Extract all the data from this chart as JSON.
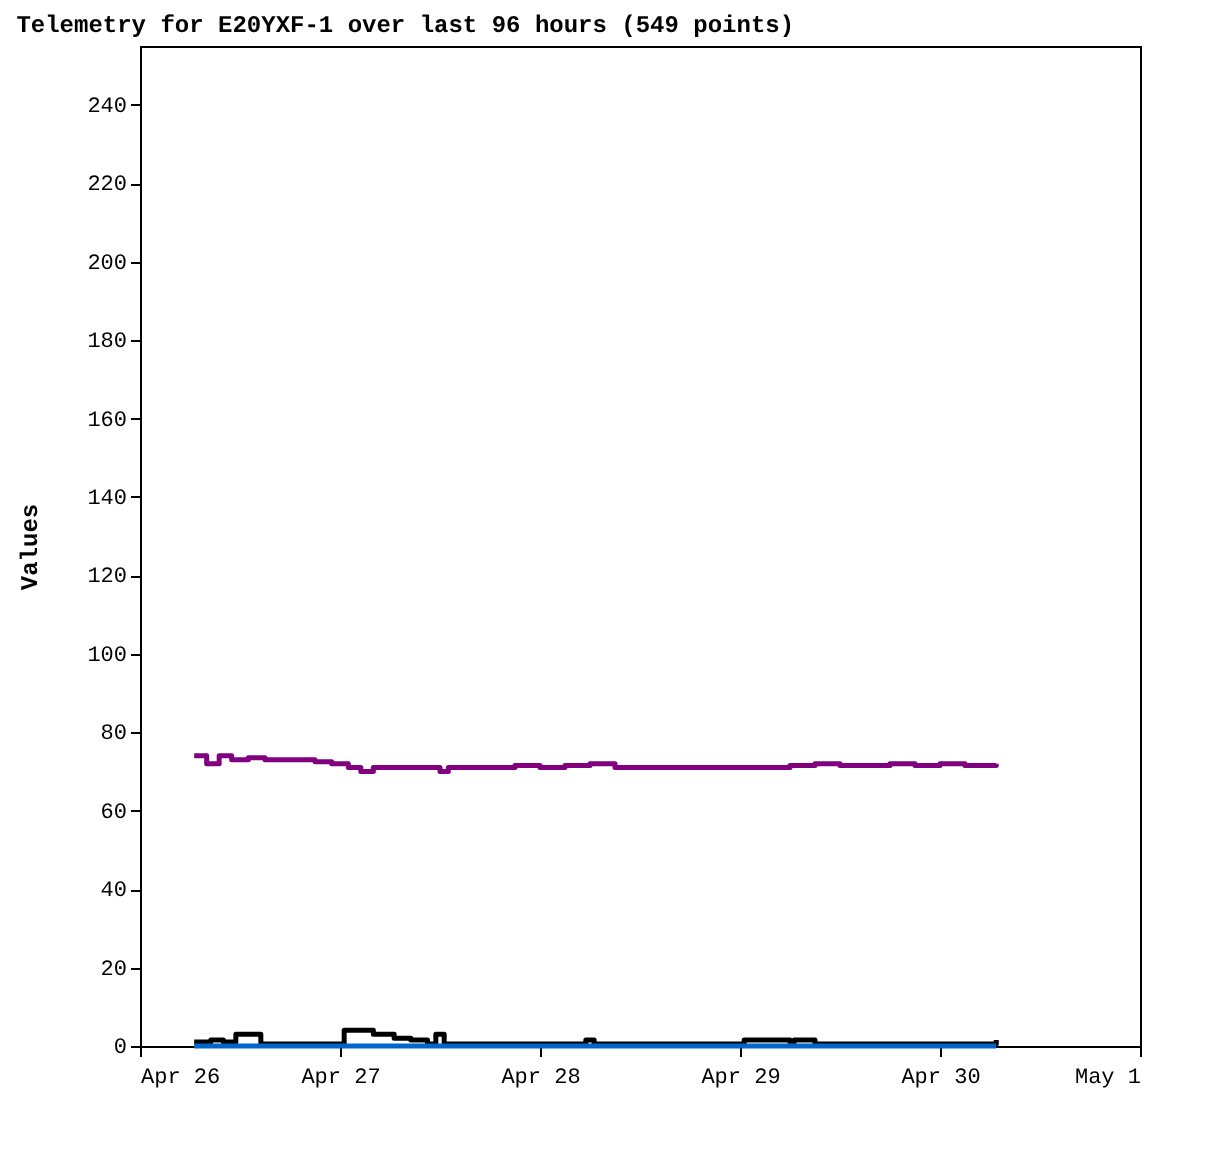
{
  "chart_data": {
    "type": "step",
    "title": "Telemetry for E20YXF-1 over last 96 hours (549 points)",
    "ylabel": "Values",
    "ylim": [
      0,
      255
    ],
    "yticks": [
      0,
      20,
      40,
      60,
      80,
      100,
      120,
      140,
      160,
      180,
      200,
      220,
      240
    ],
    "xlim": [
      "--04-26",
      "--05-01"
    ],
    "xticks": [
      {
        "value": "--04-26",
        "label": "Apr 26"
      },
      {
        "value": "--04-27",
        "label": "Apr 27"
      },
      {
        "value": "--04-28",
        "label": "Apr 28"
      },
      {
        "value": "--04-29",
        "label": "Apr 29"
      },
      {
        "value": "--04-30",
        "label": "Apr 30"
      },
      {
        "value": "--05-01",
        "label": "May 1"
      }
    ],
    "grid": false,
    "series": [
      {
        "color": "#800080",
        "x": [
          "--04-26T06:30",
          "--04-26T08:00",
          "--04-26T09:30",
          "--04-26T11:00",
          "--04-26T13:00",
          "--04-26T15:00",
          "--04-26T17:00",
          "--04-26T19:00",
          "--04-26T21:00",
          "--04-26T23:00",
          "--04-27T01:00",
          "--04-27T02:30",
          "--04-27T04:00",
          "--04-27T06:00",
          "--04-27T08:00",
          "--04-27T10:00",
          "--04-27T12:00",
          "--04-27T13:00",
          "--04-27T15:00",
          "--04-27T18:00",
          "--04-27T21:00",
          "--04-28T00:00",
          "--04-28T03:00",
          "--04-28T06:00",
          "--04-28T09:00",
          "--04-28T12:00",
          "--04-28T15:00",
          "--04-28T18:00",
          "--04-28T21:00",
          "--04-29T00:00",
          "--04-29T03:00",
          "--04-29T06:00",
          "--04-29T09:00",
          "--04-29T12:00",
          "--04-29T15:00",
          "--04-29T18:00",
          "--04-29T21:00",
          "--04-30T00:00",
          "--04-30T03:00",
          "--04-30T06:45"
        ],
        "values": [
          74,
          72,
          74,
          73,
          73.5,
          73,
          73,
          73,
          72.5,
          72,
          71,
          70,
          71,
          71,
          71,
          71,
          70,
          71,
          71,
          71,
          71.5,
          71,
          71.5,
          72,
          71,
          71,
          71,
          71,
          71,
          71,
          71,
          71.5,
          72,
          71.5,
          71.5,
          72,
          71.5,
          72,
          71.5,
          72
        ]
      },
      {
        "color": "#000000",
        "x": [
          "--04-26T06:30",
          "--04-26T08:30",
          "--04-26T10:00",
          "--04-26T11:30",
          "--04-26T14:30",
          "--04-27T00:30",
          "--04-27T04:00",
          "--04-27T06:30",
          "--04-27T08:30",
          "--04-27T10:30",
          "--04-27T11:30",
          "--04-27T12:30",
          "--04-28T05:30",
          "--04-28T06:30",
          "--04-29T00:30",
          "--04-29T03:00",
          "--04-29T06:00",
          "--04-29T06:30",
          "--04-29T09:00",
          "--04-30T06:15",
          "--04-30T06:45"
        ],
        "values": [
          1,
          1.5,
          1,
          3,
          0.5,
          4,
          3,
          2,
          1.5,
          0.5,
          3,
          0.5,
          1.5,
          0.5,
          1.5,
          1.5,
          1,
          1.5,
          0.5,
          0.5,
          1.5
        ]
      },
      {
        "color": "#0066cc",
        "x": [
          "--04-26T06:30",
          "--04-30T06:45"
        ],
        "values": [
          0,
          0
        ]
      }
    ]
  }
}
